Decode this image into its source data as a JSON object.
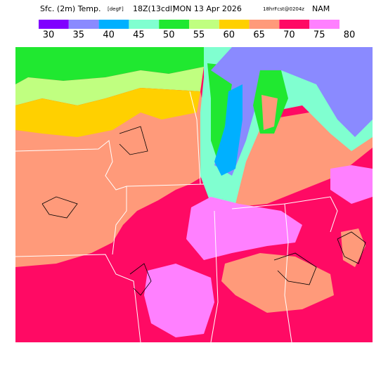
{
  "header": {
    "parts": [
      "Sfc. (2m) Temp.",
      "[degF]",
      "18Z(13cdl)",
      "MON 13 Apr 2026",
      "18hrFcst@0204z",
      "NAM"
    ]
  },
  "legend": {
    "colors": [
      "#8000ff",
      "#8a8aff",
      "#00b0ff",
      "#80ffd0",
      "#20e830",
      "#c0ff80",
      "#ffd000",
      "#ff9a7a",
      "#ff0a64",
      "#ff80ff"
    ],
    "ticks": [
      30,
      35,
      40,
      45,
      50,
      55,
      60,
      65,
      70,
      75,
      80
    ]
  }
}
